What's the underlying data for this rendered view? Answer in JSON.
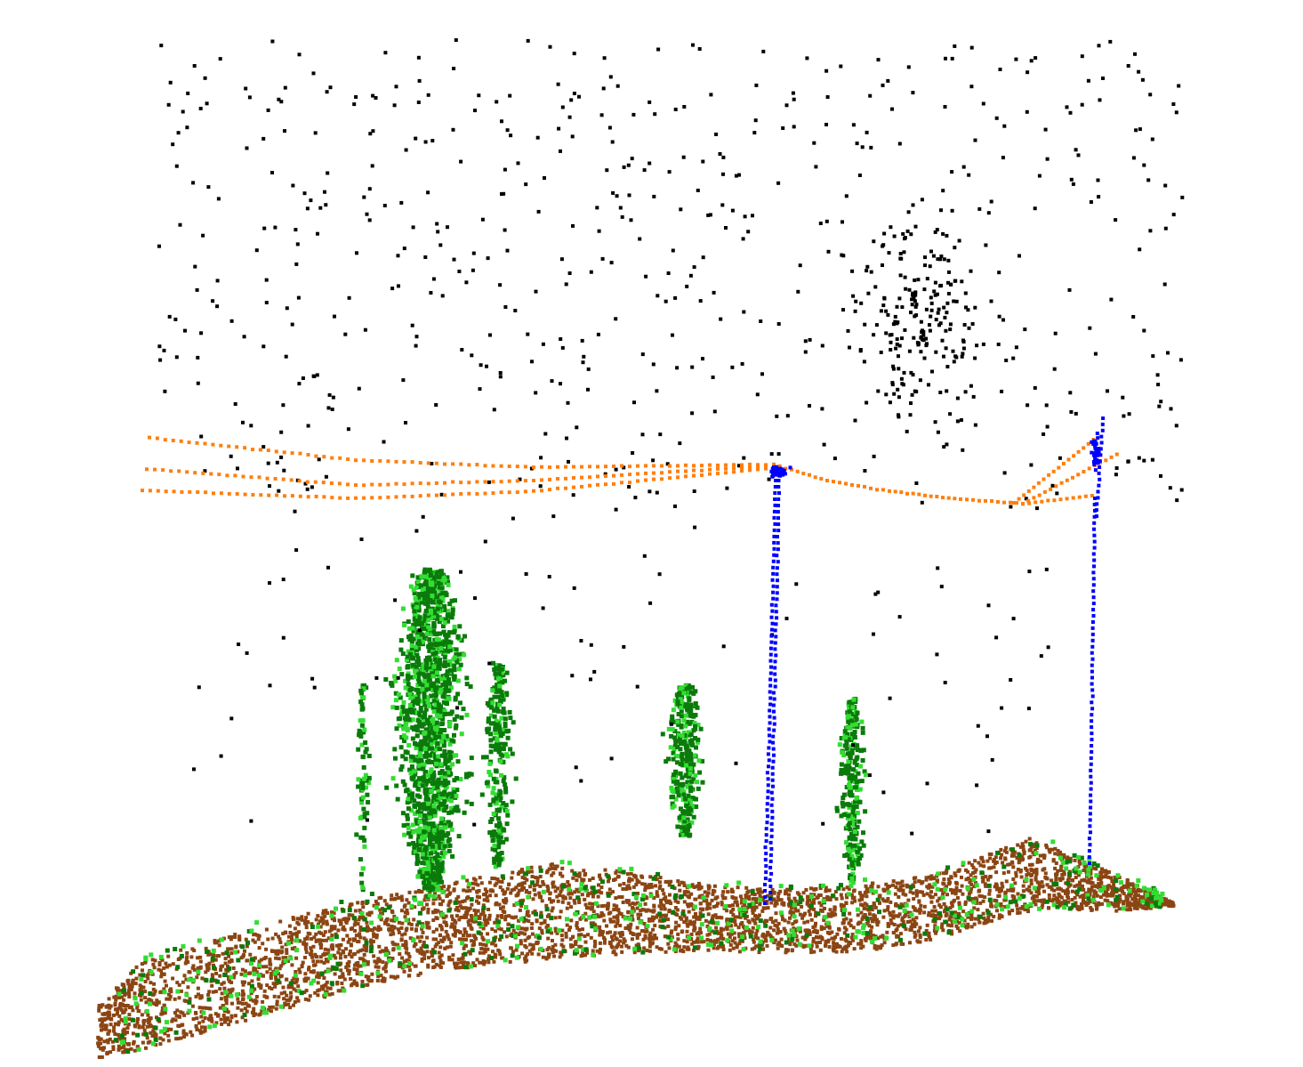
{
  "scene": {
    "kind": "lidar-point-cloud",
    "background": "#ffffff",
    "classes": [
      {
        "key": "noise",
        "color": "#000000"
      },
      {
        "key": "power_line",
        "color": "#ff7f0e"
      },
      {
        "key": "pylon",
        "color": "#0000ff"
      },
      {
        "key": "high_vegetation",
        "color": "#0a7a0a"
      },
      {
        "key": "low_vegetation",
        "color": "#33dd33"
      },
      {
        "key": "ground",
        "color": "#8b4513"
      }
    ]
  }
}
